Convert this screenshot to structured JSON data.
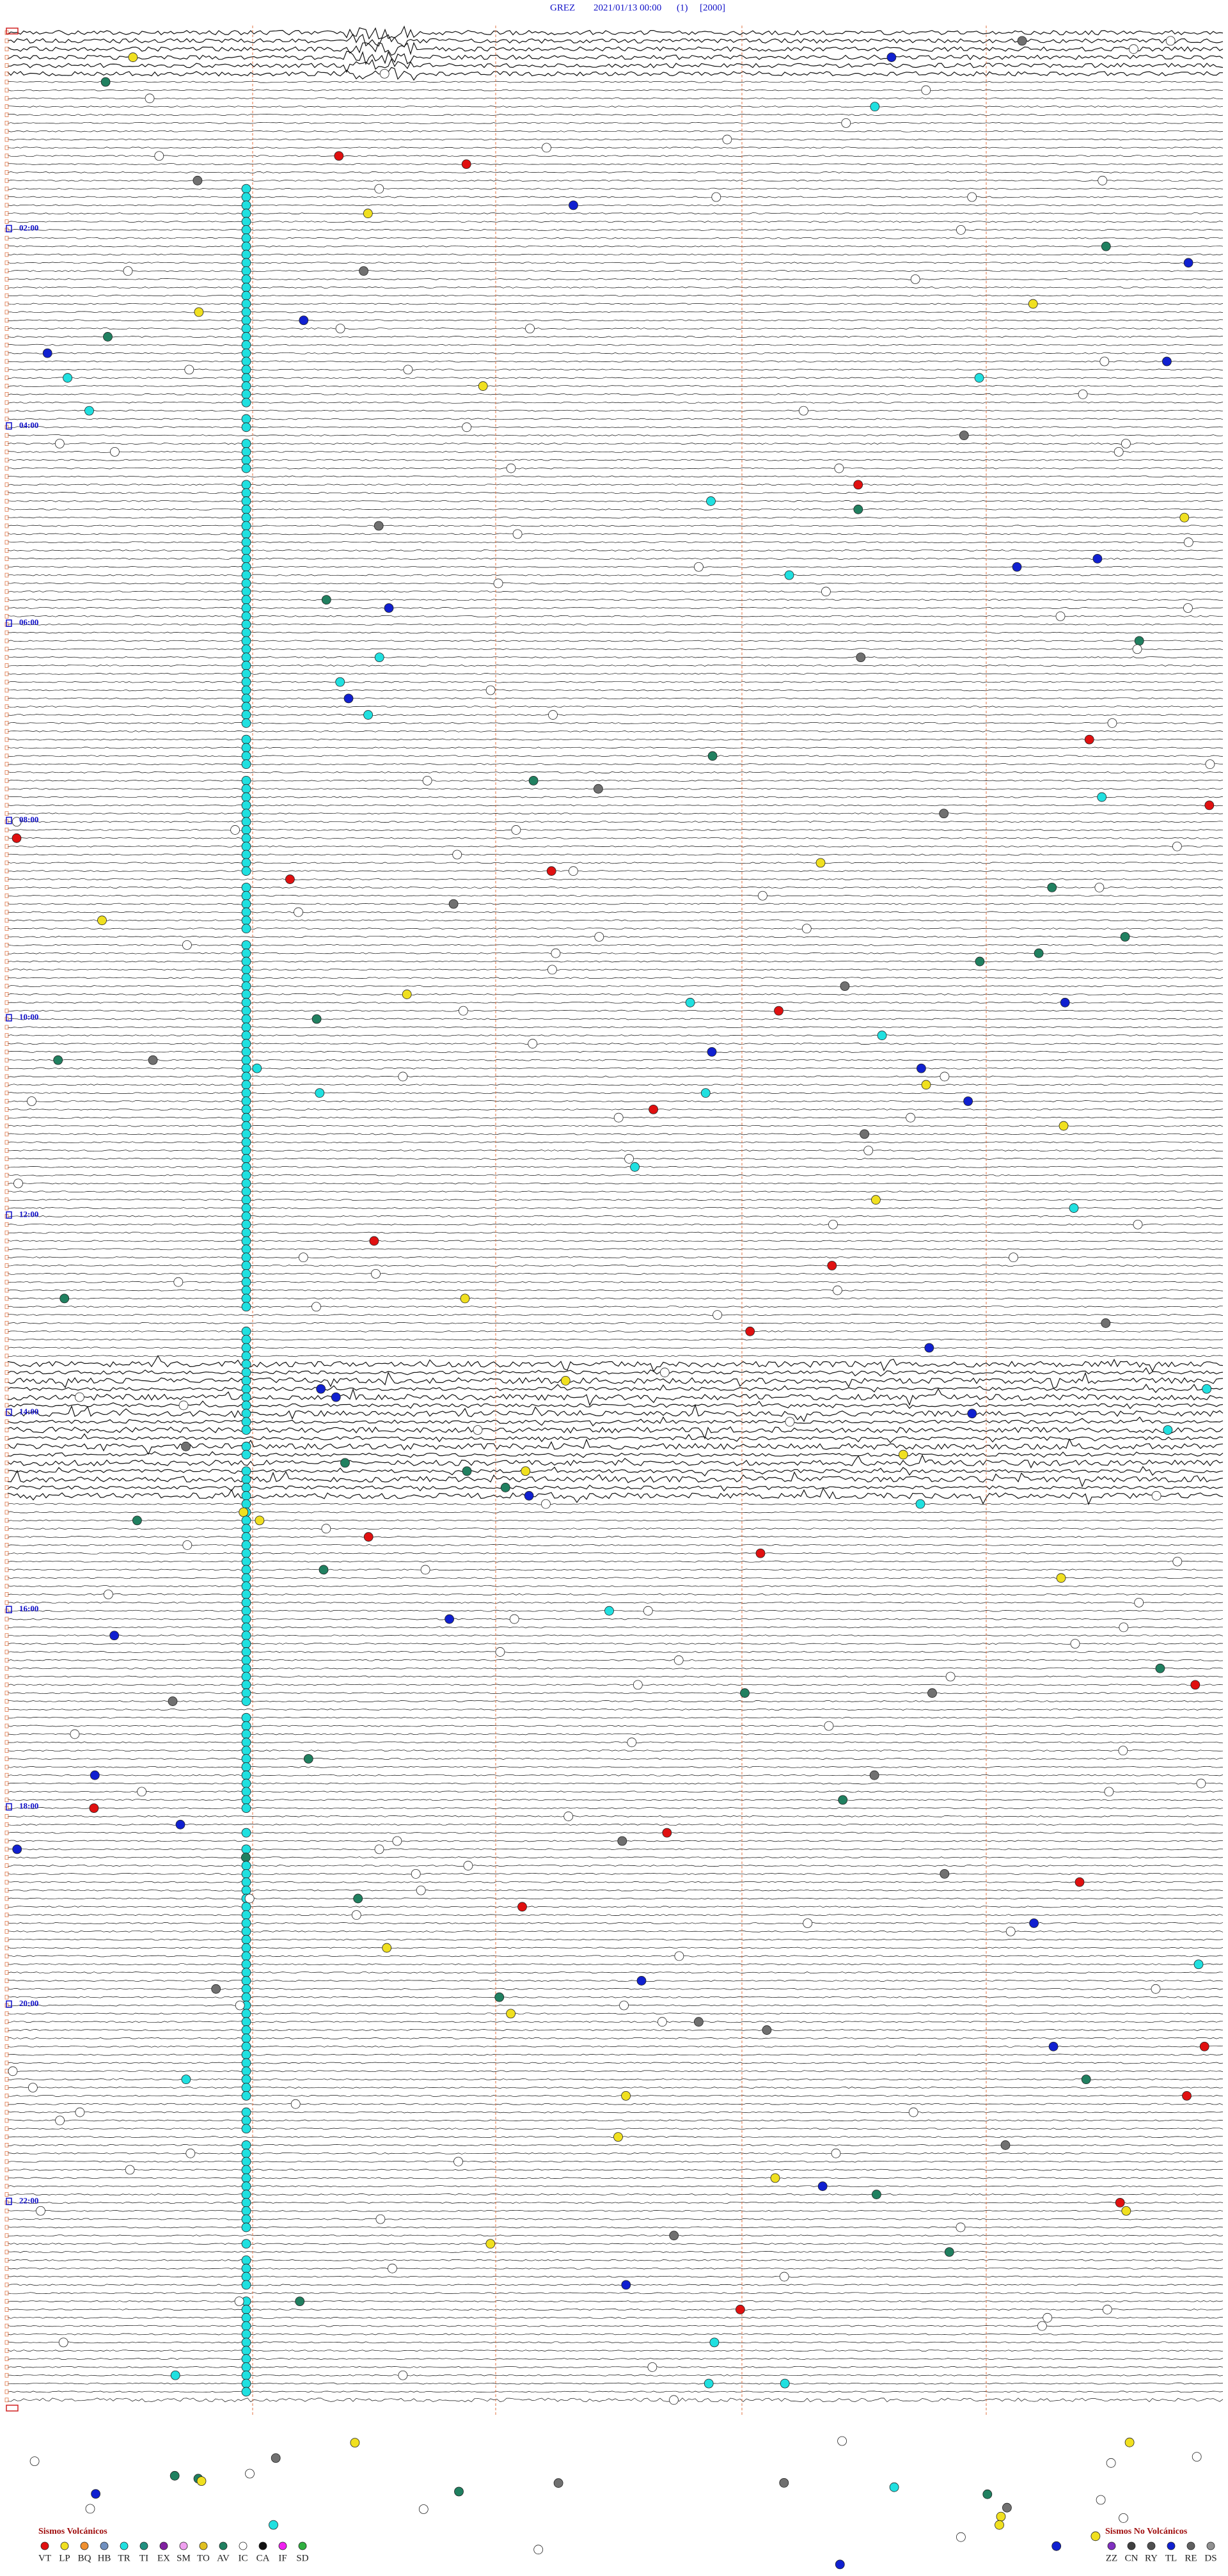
{
  "header": {
    "station": "GREZ",
    "datetime": "2021/01/13 00:00",
    "channel": "(1)",
    "scale": "[2000]"
  },
  "hour_labels": [
    "02:00",
    "04:00",
    "06:00",
    "08:00",
    "10:00",
    "12:00",
    "14:00",
    "16:00",
    "18:00",
    "20:00",
    "22:00"
  ],
  "legend_volcanic": {
    "title": "Sismos Volcánicos",
    "items": [
      {
        "code": "VT",
        "color": "#e01010"
      },
      {
        "code": "LP",
        "color": "#f0e020"
      },
      {
        "code": "BQ",
        "color": "#f09030"
      },
      {
        "code": "HB",
        "color": "#7090c0"
      },
      {
        "code": "TR",
        "color": "#20e0e0"
      },
      {
        "code": "TI",
        "color": "#209080"
      },
      {
        "code": "EX",
        "color": "#8020a0"
      },
      {
        "code": "SM",
        "color": "#f0a0f0"
      },
      {
        "code": "TO",
        "color": "#e0c020"
      },
      {
        "code": "AV",
        "color": "#208060"
      },
      {
        "code": "IC",
        "color": "#ffffff"
      },
      {
        "code": "CA",
        "color": "#101010"
      },
      {
        "code": "IF",
        "color": "#f020f0"
      },
      {
        "code": "SD",
        "color": "#30b040"
      }
    ]
  },
  "legend_non_volcanic": {
    "title": "Sismos No Volcánicos",
    "items": [
      {
        "code": "ZZ",
        "color": "#8030c0"
      },
      {
        "code": "CN",
        "color": "#404040"
      },
      {
        "code": "RY",
        "color": "#505050"
      },
      {
        "code": "TL",
        "color": "#1020d0"
      },
      {
        "code": "RE",
        "color": "#606060"
      },
      {
        "code": "DS",
        "color": "#909090"
      }
    ]
  }
}
